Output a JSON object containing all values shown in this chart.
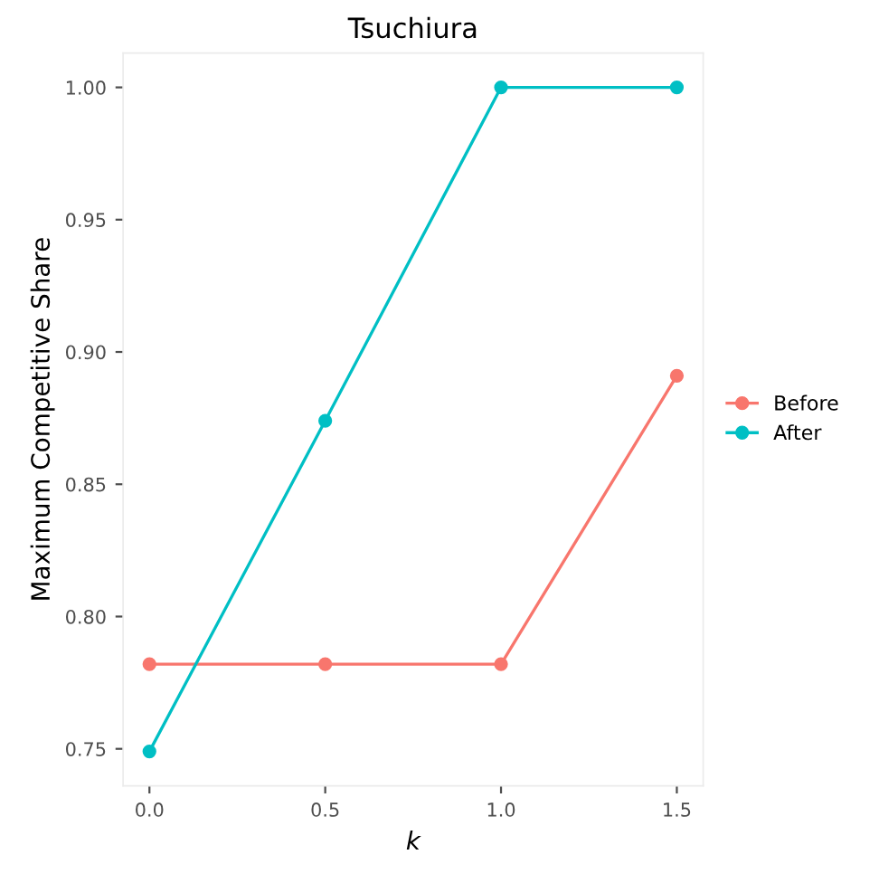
{
  "chart_data": {
    "type": "line",
    "title": "Tsuchiura",
    "xlabel": "k",
    "ylabel": "Maximum Competitive Share",
    "x": [
      0.0,
      0.5,
      1.0,
      1.5
    ],
    "series": [
      {
        "name": "Before",
        "color": "#f8766d",
        "values": [
          0.782,
          0.782,
          0.782,
          0.891
        ]
      },
      {
        "name": "After",
        "color": "#00bfc4",
        "values": [
          0.749,
          0.874,
          1.0,
          1.0
        ]
      }
    ],
    "xlim": [
      -0.075,
      1.575
    ],
    "ylim": [
      0.736,
      1.013
    ],
    "xticks": [
      {
        "value": 0,
        "label": "0.0"
      },
      {
        "value": 0.5,
        "label": "0.5"
      },
      {
        "value": 1,
        "label": "1.0"
      },
      {
        "value": 1.5,
        "label": "1.5"
      }
    ],
    "yticks": [
      {
        "value": 0.75,
        "label": "0.75"
      },
      {
        "value": 0.8,
        "label": "0.80"
      },
      {
        "value": 0.85,
        "label": "0.85"
      },
      {
        "value": 0.9,
        "label": "0.90"
      },
      {
        "value": 0.95,
        "label": "0.95"
      },
      {
        "value": 1.0,
        "label": "1.00"
      }
    ],
    "grid": false,
    "legend": "right",
    "marker": "circle",
    "line_style": "solid"
  }
}
